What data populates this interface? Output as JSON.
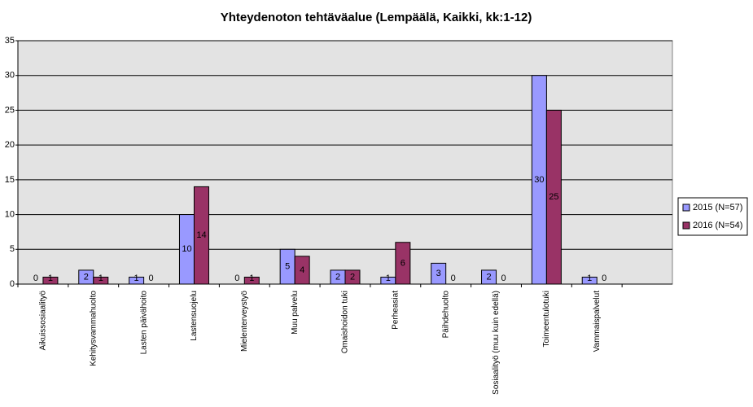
{
  "chart_data": {
    "type": "bar",
    "title": "Yhteydenoton tehtäväalue (Lempäälä, Kaikki, kk:1-12)",
    "categories": [
      "Aikuissosiaalityö",
      "Kehitysvammahuolto",
      "Lasten päivähoito",
      "Lastensuojelu",
      "Mielenterveystyö",
      "Muu palvelu",
      "Omaishoidon tuki",
      "Perheasiat",
      "Päihdehuolto",
      "Sosiaalityö (muu kuin edellä)",
      "Toimeentulotuki",
      "Vammaispalvelut",
      null
    ],
    "series": [
      {
        "name": "2015 (N=57)",
        "color": "#9999ff",
        "values": [
          0,
          2,
          1,
          10,
          0,
          5,
          2,
          1,
          3,
          2,
          30,
          1,
          null
        ]
      },
      {
        "name": "2016 (N=54)",
        "color": "#993366",
        "values": [
          1,
          1,
          0,
          14,
          1,
          4,
          2,
          6,
          0,
          0,
          25,
          0,
          null
        ]
      }
    ],
    "ylim": [
      0,
      35
    ],
    "yticks": [
      0,
      5,
      10,
      15,
      20,
      25,
      30,
      35
    ],
    "grid": true,
    "legend": "right"
  }
}
